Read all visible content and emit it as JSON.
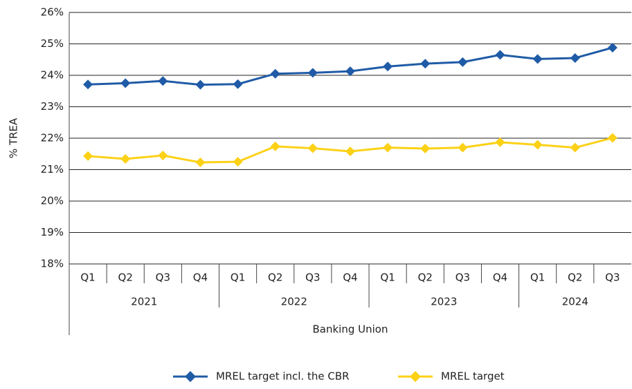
{
  "chart_data": {
    "type": "line",
    "xlabel": "Banking Union",
    "ylabel": "% TREA",
    "groups": [
      {
        "label": "2021",
        "categories": [
          "Q1",
          "Q2",
          "Q3",
          "Q4"
        ]
      },
      {
        "label": "2022",
        "categories": [
          "Q1",
          "Q2",
          "Q3",
          "Q4"
        ]
      },
      {
        "label": "2023",
        "categories": [
          "Q1",
          "Q2",
          "Q3",
          "Q4"
        ]
      },
      {
        "label": "2024",
        "categories": [
          "Q1",
          "Q2",
          "Q3"
        ]
      }
    ],
    "series": [
      {
        "name": "MREL target incl. the CBR",
        "color": "#1f5ba6",
        "values": [
          23.71,
          23.75,
          23.82,
          23.7,
          23.72,
          24.05,
          24.08,
          24.13,
          24.28,
          24.37,
          24.42,
          24.65,
          24.52,
          24.55,
          24.88
        ]
      },
      {
        "name": "MREL target",
        "color": "#fcd116",
        "values": [
          21.43,
          21.34,
          21.45,
          21.23,
          21.25,
          21.74,
          21.68,
          21.58,
          21.7,
          21.67,
          21.7,
          21.87,
          21.79,
          21.7,
          22.01
        ]
      }
    ],
    "ylim": [
      18,
      26
    ],
    "yticks": [
      {
        "value": 18,
        "label": "18%"
      },
      {
        "value": 19,
        "label": "19%"
      },
      {
        "value": 20,
        "label": "20%"
      },
      {
        "value": 21,
        "label": "21%"
      },
      {
        "value": 22,
        "label": "22%"
      },
      {
        "value": 23,
        "label": "23%"
      },
      {
        "value": 24,
        "label": "24%"
      },
      {
        "value": 25,
        "label": "25%"
      },
      {
        "value": 26,
        "label": "26%"
      }
    ],
    "grid": true,
    "legend": "bottom"
  }
}
